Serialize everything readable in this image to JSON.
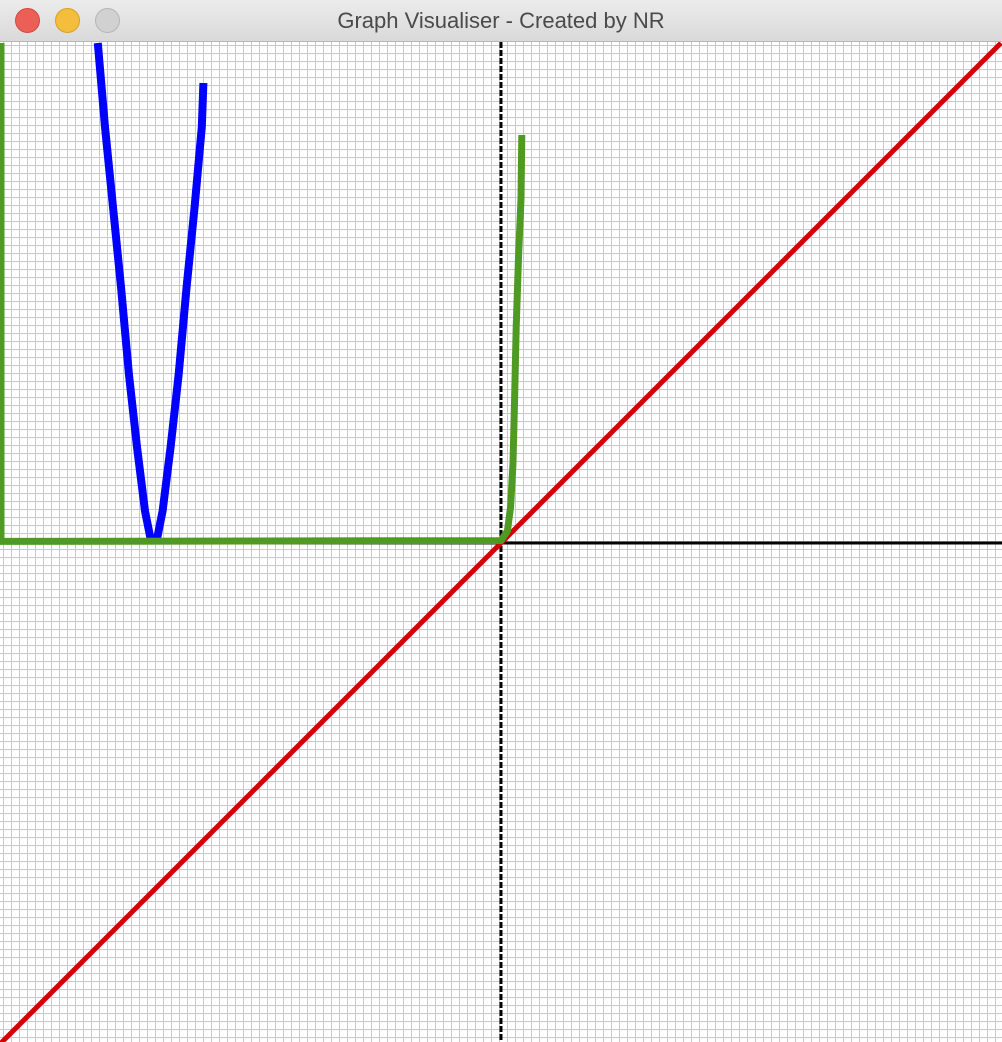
{
  "window": {
    "title": "Graph Visualiser - Created by NR"
  },
  "colors": {
    "titlebar": "#e3e3e3",
    "close": "#ec5f57",
    "minimize": "#f4bd3c",
    "zoom": "#d1d1d1",
    "grid": "#c8c8c8",
    "axis": "#000000"
  },
  "icons": [
    "close-icon",
    "minimize-icon",
    "zoom-icon"
  ],
  "chart_data": {
    "type": "line",
    "grid": true,
    "xlim": [
      -62.5,
      62.5
    ],
    "ylim": [
      -62.5,
      62.5
    ],
    "series": [
      {
        "color": "#d40000",
        "points": [
          [
            -62.5,
            -62.5
          ],
          [
            62.5,
            62.5
          ]
        ]
      },
      {
        "color": "#0000ff",
        "points": [
          [
            -50.4,
            62.5
          ],
          [
            -49.5,
            52
          ],
          [
            -48.5,
            42
          ],
          [
            -47.5,
            32
          ],
          [
            -46.5,
            21
          ],
          [
            -45.5,
            12
          ],
          [
            -44.5,
            4
          ],
          [
            -43.8,
            0.5
          ],
          [
            -43.0,
            0.5
          ],
          [
            -42.3,
            4
          ],
          [
            -41.3,
            12
          ],
          [
            -40.3,
            21
          ],
          [
            -39.3,
            32
          ],
          [
            -38.3,
            42
          ],
          [
            -37.4,
            52
          ],
          [
            -37.2,
            57.5
          ]
        ]
      },
      {
        "color": "#4f9a22",
        "points": [
          [
            -62.5,
            62.5
          ],
          [
            -62.5,
            0.2
          ],
          [
            0,
            0.3
          ],
          [
            0.8,
            1.5
          ],
          [
            1.2,
            4.5
          ],
          [
            1.5,
            10
          ],
          [
            1.7,
            18
          ],
          [
            1.9,
            27
          ],
          [
            2.2,
            36
          ],
          [
            2.5,
            43
          ],
          [
            2.6,
            51
          ]
        ]
      }
    ]
  }
}
